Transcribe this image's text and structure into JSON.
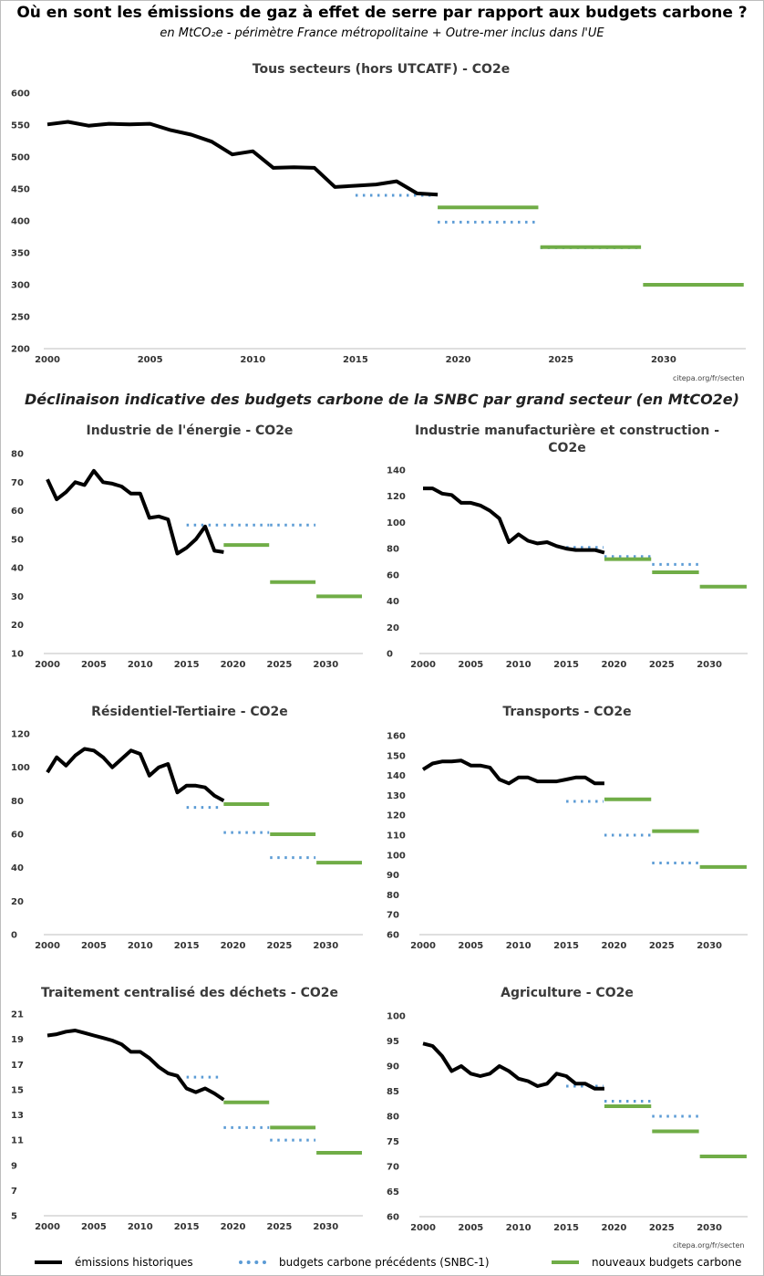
{
  "header": {
    "title": "Où en sont les émissions de gaz à effet de serre par rapport aux budgets carbone ?",
    "subtitle": "en MtCO₂e - périmètre France métropolitaine + Outre-mer inclus dans l'UE"
  },
  "section_title": "Déclinaison indicative des budgets carbone de la SNBC par grand secteur (en MtCO2e)",
  "source": "citepa.org/fr/secten",
  "colors": {
    "historique": "#000000",
    "precedents": "#5b9bd5",
    "nouveaux": "#70ad47"
  },
  "legend": [
    {
      "label": "émissions historiques",
      "style": "solid",
      "color": "#000000"
    },
    {
      "label": "budgets carbone précédents (SNBC-1)",
      "style": "dotted",
      "color": "#5b9bd5"
    },
    {
      "label": "nouveaux budgets carbone",
      "style": "solid",
      "color": "#70ad47"
    }
  ],
  "chart_data": [
    {
      "type": "line",
      "title": "Tous secteurs (hors UTCATF) - CO2e",
      "xlim": [
        2000,
        2034
      ],
      "ylim": [
        200,
        600
      ],
      "xticks": [
        2000,
        2005,
        2010,
        2015,
        2020,
        2025,
        2030
      ],
      "yticks": [
        200,
        250,
        300,
        350,
        400,
        450,
        500,
        550,
        600
      ],
      "series": [
        {
          "name": "émissions historiques",
          "x": [
            2000,
            2001,
            2002,
            2003,
            2004,
            2005,
            2006,
            2007,
            2008,
            2009,
            2010,
            2011,
            2012,
            2013,
            2014,
            2015,
            2016,
            2017,
            2018,
            2019
          ],
          "y": [
            551,
            555,
            549,
            552,
            551,
            552,
            542,
            535,
            524,
            504,
            509,
            483,
            484,
            483,
            453,
            455,
            457,
            462,
            443,
            441
          ]
        }
      ],
      "budgets_precedents": [
        {
          "x": [
            2015,
            2018
          ],
          "y": 440
        },
        {
          "x": [
            2019,
            2023
          ],
          "y": 398
        },
        {
          "x": [
            2024,
            2028
          ],
          "y": 358
        }
      ],
      "nouveaux_budgets": [
        {
          "x": [
            2019,
            2023
          ],
          "y": 421
        },
        {
          "x": [
            2024,
            2028
          ],
          "y": 359
        },
        {
          "x": [
            2029,
            2033
          ],
          "y": 300
        }
      ]
    },
    {
      "type": "line",
      "title": "Industrie de l'énergie - CO2e",
      "xlim": [
        2000,
        2034
      ],
      "ylim": [
        10,
        80
      ],
      "xticks": [
        2000,
        2005,
        2010,
        2015,
        2020,
        2025,
        2030
      ],
      "yticks": [
        10,
        20,
        30,
        40,
        50,
        60,
        70,
        80
      ],
      "series": [
        {
          "name": "émissions historiques",
          "x": [
            2000,
            2001,
            2002,
            2003,
            2004,
            2005,
            2006,
            2007,
            2008,
            2009,
            2010,
            2011,
            2012,
            2013,
            2014,
            2015,
            2016,
            2017,
            2018,
            2019
          ],
          "y": [
            71,
            64,
            66.5,
            70,
            69,
            74,
            70,
            69.5,
            68.5,
            66,
            66,
            57.5,
            58,
            57,
            45,
            47,
            50,
            54.5,
            46,
            45.5
          ]
        }
      ],
      "budgets_precedents": [
        {
          "x": [
            2015,
            2018
          ],
          "y": 55
        },
        {
          "x": [
            2019,
            2023
          ],
          "y": 55
        },
        {
          "x": [
            2024,
            2028
          ],
          "y": 55
        }
      ],
      "nouveaux_budgets": [
        {
          "x": [
            2019,
            2023
          ],
          "y": 48
        },
        {
          "x": [
            2024,
            2028
          ],
          "y": 35
        },
        {
          "x": [
            2029,
            2033
          ],
          "y": 30
        }
      ]
    },
    {
      "type": "line",
      "title": "Industrie manufacturière et construction - CO2e",
      "xlim": [
        2000,
        2034
      ],
      "ylim": [
        0,
        140
      ],
      "xticks": [
        2000,
        2005,
        2010,
        2015,
        2020,
        2025,
        2030
      ],
      "yticks": [
        0,
        20,
        40,
        60,
        80,
        100,
        120,
        140
      ],
      "series": [
        {
          "name": "émissions historiques",
          "x": [
            2000,
            2001,
            2002,
            2003,
            2004,
            2005,
            2006,
            2007,
            2008,
            2009,
            2010,
            2011,
            2012,
            2013,
            2014,
            2015,
            2016,
            2017,
            2018,
            2019
          ],
          "y": [
            126,
            126,
            122,
            121,
            115,
            115,
            113,
            109,
            103,
            85,
            91,
            86,
            84,
            85,
            82,
            80,
            79,
            79,
            79,
            77
          ]
        }
      ],
      "budgets_precedents": [
        {
          "x": [
            2015,
            2018
          ],
          "y": 81
        },
        {
          "x": [
            2019,
            2023
          ],
          "y": 74
        },
        {
          "x": [
            2024,
            2028
          ],
          "y": 68
        }
      ],
      "nouveaux_budgets": [
        {
          "x": [
            2019,
            2023
          ],
          "y": 72
        },
        {
          "x": [
            2024,
            2028
          ],
          "y": 62
        },
        {
          "x": [
            2029,
            2033
          ],
          "y": 51
        }
      ]
    },
    {
      "type": "line",
      "title": "Résidentiel-Tertiaire - CO2e",
      "xlim": [
        2000,
        2034
      ],
      "ylim": [
        0,
        120
      ],
      "xticks": [
        2000,
        2005,
        2010,
        2015,
        2020,
        2025,
        2030
      ],
      "yticks": [
        0,
        20,
        40,
        60,
        80,
        100,
        120
      ],
      "series": [
        {
          "name": "émissions historiques",
          "x": [
            2000,
            2001,
            2002,
            2003,
            2004,
            2005,
            2006,
            2007,
            2008,
            2009,
            2010,
            2011,
            2012,
            2013,
            2014,
            2015,
            2016,
            2017,
            2018,
            2019
          ],
          "y": [
            97,
            106,
            101,
            107,
            111,
            110,
            106,
            100,
            105,
            110,
            108,
            95,
            100,
            102,
            85,
            89,
            89,
            88,
            83,
            80
          ]
        }
      ],
      "budgets_precedents": [
        {
          "x": [
            2015,
            2018
          ],
          "y": 76
        },
        {
          "x": [
            2019,
            2023
          ],
          "y": 61
        },
        {
          "x": [
            2024,
            2028
          ],
          "y": 46
        }
      ],
      "nouveaux_budgets": [
        {
          "x": [
            2019,
            2023
          ],
          "y": 78
        },
        {
          "x": [
            2024,
            2028
          ],
          "y": 60
        },
        {
          "x": [
            2029,
            2033
          ],
          "y": 43
        }
      ]
    },
    {
      "type": "line",
      "title": "Transports - CO2e",
      "xlim": [
        2000,
        2034
      ],
      "ylim": [
        60,
        160
      ],
      "xticks": [
        2000,
        2005,
        2010,
        2015,
        2020,
        2025,
        2030
      ],
      "yticks": [
        60,
        70,
        80,
        90,
        100,
        110,
        120,
        130,
        140,
        150,
        160
      ],
      "series": [
        {
          "name": "émissions historiques",
          "x": [
            2000,
            2001,
            2002,
            2003,
            2004,
            2005,
            2006,
            2007,
            2008,
            2009,
            2010,
            2011,
            2012,
            2013,
            2014,
            2015,
            2016,
            2017,
            2018,
            2019
          ],
          "y": [
            143,
            146,
            147,
            147,
            147.5,
            145,
            145,
            144,
            138,
            136,
            139,
            139,
            137,
            137,
            137,
            138,
            139,
            139,
            136,
            136
          ]
        }
      ],
      "budgets_precedents": [
        {
          "x": [
            2015,
            2018
          ],
          "y": 127
        },
        {
          "x": [
            2019,
            2023
          ],
          "y": 110
        },
        {
          "x": [
            2024,
            2028
          ],
          "y": 96
        }
      ],
      "nouveaux_budgets": [
        {
          "x": [
            2019,
            2023
          ],
          "y": 128
        },
        {
          "x": [
            2024,
            2028
          ],
          "y": 112
        },
        {
          "x": [
            2029,
            2033
          ],
          "y": 94
        }
      ]
    },
    {
      "type": "line",
      "title": "Traitement centralisé des déchets - CO2e",
      "xlim": [
        2000,
        2034
      ],
      "ylim": [
        5,
        21
      ],
      "xticks": [
        2000,
        2005,
        2010,
        2015,
        2020,
        2025,
        2030
      ],
      "yticks": [
        5,
        7,
        9,
        11,
        13,
        15,
        17,
        19,
        21
      ],
      "series": [
        {
          "name": "émissions historiques",
          "x": [
            2000,
            2001,
            2002,
            2003,
            2004,
            2005,
            2006,
            2007,
            2008,
            2009,
            2010,
            2011,
            2012,
            2013,
            2014,
            2015,
            2016,
            2017,
            2018,
            2019
          ],
          "y": [
            19.3,
            19.4,
            19.6,
            19.7,
            19.5,
            19.3,
            19.1,
            18.9,
            18.6,
            18.0,
            18.0,
            17.5,
            16.8,
            16.3,
            16.1,
            15.1,
            14.8,
            15.1,
            14.7,
            14.2
          ]
        }
      ],
      "budgets_precedents": [
        {
          "x": [
            2015,
            2018
          ],
          "y": 16
        },
        {
          "x": [
            2019,
            2023
          ],
          "y": 12
        },
        {
          "x": [
            2024,
            2028
          ],
          "y": 11
        }
      ],
      "nouveaux_budgets": [
        {
          "x": [
            2019,
            2023
          ],
          "y": 14
        },
        {
          "x": [
            2024,
            2028
          ],
          "y": 12
        },
        {
          "x": [
            2029,
            2033
          ],
          "y": 10
        }
      ]
    },
    {
      "type": "line",
      "title": "Agriculture - CO2e",
      "xlim": [
        2000,
        2034
      ],
      "ylim": [
        60,
        100
      ],
      "xticks": [
        2000,
        2005,
        2010,
        2015,
        2020,
        2025,
        2030
      ],
      "yticks": [
        60,
        65,
        70,
        75,
        80,
        85,
        90,
        95,
        100
      ],
      "series": [
        {
          "name": "émissions historiques",
          "x": [
            2000,
            2001,
            2002,
            2003,
            2004,
            2005,
            2006,
            2007,
            2008,
            2009,
            2010,
            2011,
            2012,
            2013,
            2014,
            2015,
            2016,
            2017,
            2018,
            2019
          ],
          "y": [
            94.5,
            94,
            92,
            89,
            90,
            88.5,
            88,
            88.5,
            90,
            89,
            87.5,
            87,
            86,
            86.5,
            88.5,
            88,
            86.5,
            86.5,
            85.5,
            85.5
          ]
        }
      ],
      "budgets_precedents": [
        {
          "x": [
            2015,
            2018
          ],
          "y": 86
        },
        {
          "x": [
            2019,
            2023
          ],
          "y": 83
        },
        {
          "x": [
            2024,
            2028
          ],
          "y": 80
        }
      ],
      "nouveaux_budgets": [
        {
          "x": [
            2019,
            2023
          ],
          "y": 82
        },
        {
          "x": [
            2024,
            2028
          ],
          "y": 77
        },
        {
          "x": [
            2029,
            2033
          ],
          "y": 72
        }
      ]
    }
  ]
}
